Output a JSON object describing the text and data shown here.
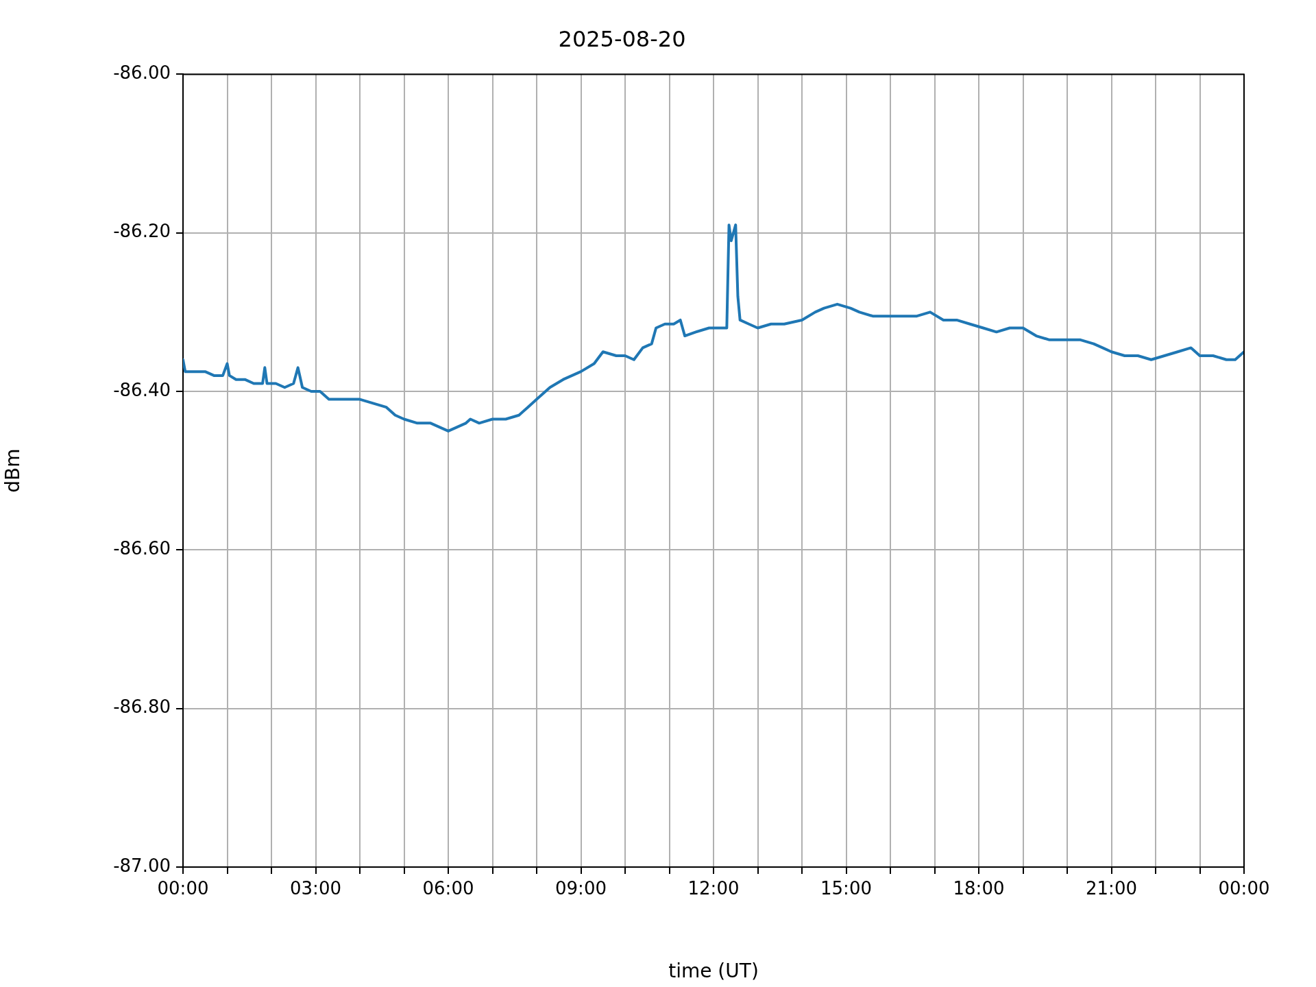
{
  "chart_data": {
    "type": "line",
    "title": "2025-08-20",
    "xlabel": "time (UT)",
    "ylabel": "dBm",
    "x": [
      0,
      0.05,
      0.15,
      0.3,
      0.5,
      0.7,
      0.9,
      1.0,
      1.05,
      1.2,
      1.4,
      1.6,
      1.8,
      1.85,
      1.9,
      2.1,
      2.3,
      2.5,
      2.6,
      2.7,
      2.9,
      3.1,
      3.3,
      3.5,
      3.7,
      4.0,
      4.3,
      4.6,
      4.8,
      5.0,
      5.3,
      5.6,
      5.8,
      6.0,
      6.2,
      6.4,
      6.5,
      6.7,
      7.0,
      7.3,
      7.6,
      7.8,
      8.0,
      8.3,
      8.6,
      9.0,
      9.3,
      9.5,
      9.8,
      10.0,
      10.2,
      10.4,
      10.6,
      10.7,
      10.9,
      11.1,
      11.25,
      11.35,
      11.6,
      11.9,
      12.1,
      12.3,
      12.35,
      12.4,
      12.45,
      12.5,
      12.55,
      12.6,
      12.8,
      13.0,
      13.3,
      13.6,
      14.0,
      14.3,
      14.5,
      14.8,
      15.1,
      15.3,
      15.6,
      16.0,
      16.3,
      16.6,
      16.9,
      17.2,
      17.5,
      17.8,
      18.1,
      18.4,
      18.7,
      19.0,
      19.3,
      19.6,
      20.0,
      20.3,
      20.6,
      20.8,
      21.0,
      21.3,
      21.6,
      21.9,
      22.2,
      22.5,
      22.8,
      23.0,
      23.3,
      23.6,
      23.8,
      24.0
    ],
    "series": [
      {
        "color": "#1f77b4",
        "values": [
          -86.36,
          -86.375,
          -86.375,
          -86.375,
          -86.375,
          -86.38,
          -86.38,
          -86.365,
          -86.38,
          -86.385,
          -86.385,
          -86.39,
          -86.39,
          -86.37,
          -86.39,
          -86.39,
          -86.395,
          -86.39,
          -86.37,
          -86.395,
          -86.4,
          -86.4,
          -86.41,
          -86.41,
          -86.41,
          -86.41,
          -86.415,
          -86.42,
          -86.43,
          -86.435,
          -86.44,
          -86.44,
          -86.445,
          -86.45,
          -86.445,
          -86.44,
          -86.435,
          -86.44,
          -86.435,
          -86.435,
          -86.43,
          -86.42,
          -86.41,
          -86.395,
          -86.385,
          -86.375,
          -86.365,
          -86.35,
          -86.355,
          -86.355,
          -86.36,
          -86.345,
          -86.34,
          -86.32,
          -86.315,
          -86.315,
          -86.31,
          -86.33,
          -86.325,
          -86.32,
          -86.32,
          -86.32,
          -86.19,
          -86.21,
          -86.2,
          -86.19,
          -86.28,
          -86.31,
          -86.315,
          -86.32,
          -86.315,
          -86.315,
          -86.31,
          -86.3,
          -86.295,
          -86.29,
          -86.295,
          -86.3,
          -86.305,
          -86.305,
          -86.305,
          -86.305,
          -86.3,
          -86.31,
          -86.31,
          -86.315,
          -86.32,
          -86.325,
          -86.32,
          -86.32,
          -86.33,
          -86.335,
          -86.335,
          -86.335,
          -86.34,
          -86.345,
          -86.35,
          -86.355,
          -86.355,
          -86.36,
          -86.355,
          -86.35,
          -86.345,
          -86.355,
          -86.355,
          -86.36,
          -86.36,
          -86.35
        ]
      }
    ],
    "xlim": [
      0,
      24
    ],
    "xticks": [
      {
        "value": 0,
        "label": "00:00"
      },
      {
        "value": 1,
        "label": null
      },
      {
        "value": 2,
        "label": null
      },
      {
        "value": 3,
        "label": "03:00"
      },
      {
        "value": 4,
        "label": null
      },
      {
        "value": 5,
        "label": null
      },
      {
        "value": 6,
        "label": "06:00"
      },
      {
        "value": 7,
        "label": null
      },
      {
        "value": 8,
        "label": null
      },
      {
        "value": 9,
        "label": "09:00"
      },
      {
        "value": 10,
        "label": null
      },
      {
        "value": 11,
        "label": null
      },
      {
        "value": 12,
        "label": "12:00"
      },
      {
        "value": 13,
        "label": null
      },
      {
        "value": 14,
        "label": null
      },
      {
        "value": 15,
        "label": "15:00"
      },
      {
        "value": 16,
        "label": null
      },
      {
        "value": 17,
        "label": null
      },
      {
        "value": 18,
        "label": "18:00"
      },
      {
        "value": 19,
        "label": null
      },
      {
        "value": 20,
        "label": null
      },
      {
        "value": 21,
        "label": "21:00"
      },
      {
        "value": 22,
        "label": null
      },
      {
        "value": 23,
        "label": null
      },
      {
        "value": 24,
        "label": "00:00"
      }
    ],
    "ylim": [
      -87,
      -86
    ],
    "yticks": [
      {
        "value": -87,
        "label": "-87.00"
      },
      {
        "value": -86.8,
        "label": "-86.80"
      },
      {
        "value": -86.6,
        "label": "-86.60"
      },
      {
        "value": -86.4,
        "label": "-86.40"
      },
      {
        "value": -86.2,
        "label": "-86.20"
      },
      {
        "value": -86,
        "label": "-86.00"
      }
    ],
    "grid": true,
    "legend": false,
    "marker": "none",
    "line_style": "solid"
  }
}
